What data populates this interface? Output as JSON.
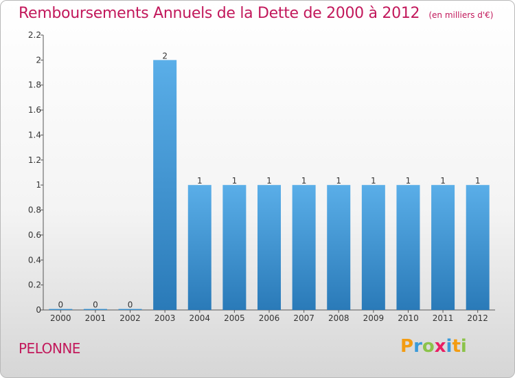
{
  "header": {
    "title": "Remboursements Annuels de la Dette de 2000 à 2012",
    "subtitle": "(en milliers d'€)"
  },
  "commune": "PELONNE",
  "logo": {
    "letters": [
      {
        "char": "P",
        "color": "#f39c12"
      },
      {
        "char": "r",
        "color": "#3a9ad9"
      },
      {
        "char": "o",
        "color": "#8bc34a"
      },
      {
        "char": "x",
        "color": "#e91e63"
      },
      {
        "char": "i",
        "color": "#3a9ad9"
      },
      {
        "char": "t",
        "color": "#f39c12"
      },
      {
        "char": "i",
        "color": "#8bc34a"
      }
    ]
  },
  "colors": {
    "title": "#c2185b",
    "bar_top": "#5aaee8",
    "bar_bottom": "#2a7ab8"
  },
  "chart_data": {
    "type": "bar",
    "title": "Remboursements Annuels de la Dette de 2000 à 2012",
    "xlabel": "",
    "ylabel": "",
    "categories": [
      "2000",
      "2001",
      "2002",
      "2003",
      "2004",
      "2005",
      "2006",
      "2007",
      "2008",
      "2009",
      "2010",
      "2011",
      "2012"
    ],
    "values": [
      0,
      0,
      0,
      2,
      1,
      1,
      1,
      1,
      1,
      1,
      1,
      1,
      1
    ],
    "data_labels": [
      "0",
      "0",
      "0",
      "2",
      "1",
      "1",
      "1",
      "1",
      "1",
      "1",
      "1",
      "1",
      "1"
    ],
    "ylim": [
      0,
      2.2
    ],
    "yticks": [
      0,
      0.2,
      0.4,
      0.6,
      0.8,
      1,
      1.2,
      1.4,
      1.6,
      1.8,
      2,
      2.2
    ],
    "ytick_labels": [
      "0",
      "0.2",
      "0.4",
      "0.6",
      "0.8",
      "1",
      "1.2",
      "1.4",
      "1.6",
      "1.8",
      "2",
      "2.2"
    ],
    "grid": false
  }
}
